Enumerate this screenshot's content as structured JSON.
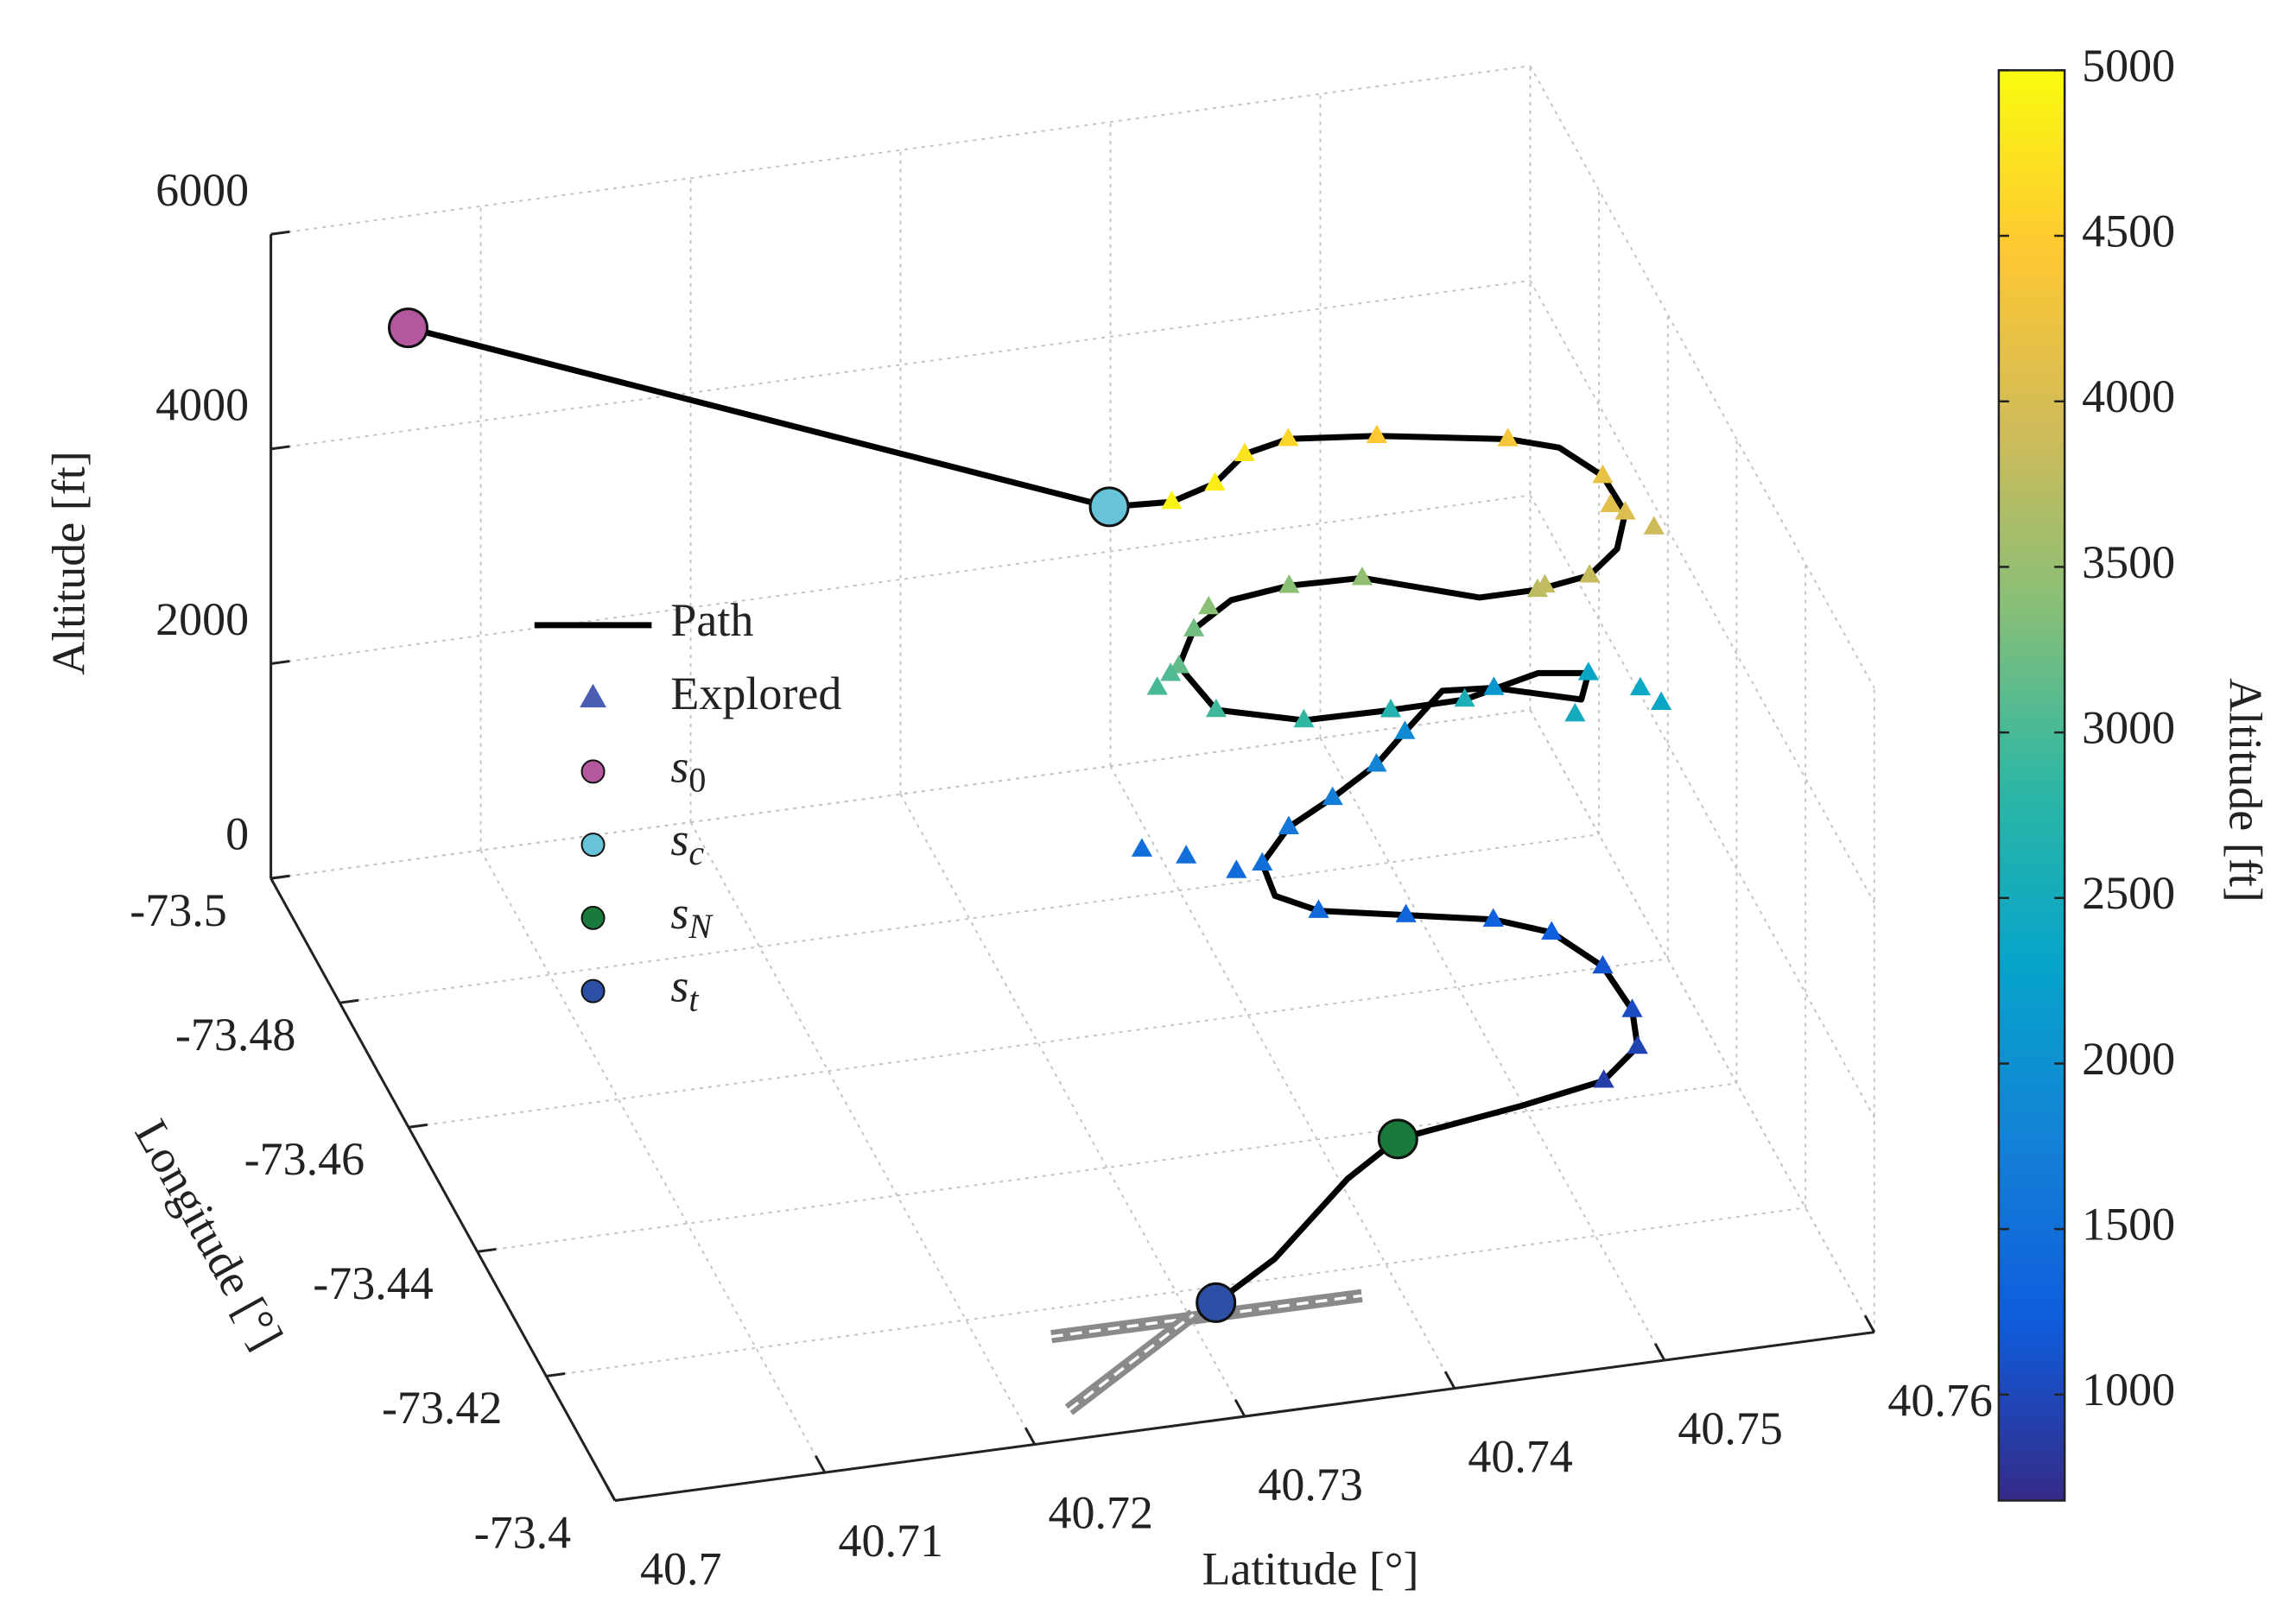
{
  "chart_data": {
    "type": "scatter3d",
    "xlabel": "Latitude [°]",
    "ylabel": "Longitude [°]",
    "zlabel": "Altitude [ft]",
    "xlim": [
      40.7,
      40.76
    ],
    "xticks": [
      40.7,
      40.71,
      40.72,
      40.73,
      40.74,
      40.75,
      40.76
    ],
    "ylim": [
      -73.5,
      -73.4
    ],
    "yticks": [
      -73.5,
      -73.48,
      -73.46,
      -73.44,
      -73.42,
      -73.4
    ],
    "zlim": [
      0,
      6000
    ],
    "zticks": [
      0,
      2000,
      4000,
      6000
    ],
    "grid": true,
    "colorbar": {
      "label": "Altitude [ft]",
      "colormap": "parula",
      "clim": [
        680,
        5000
      ],
      "ticks": [
        1000,
        1500,
        2000,
        2500,
        3000,
        3500,
        4000,
        4500,
        5000
      ]
    },
    "path": {
      "name": "Path",
      "color": "#000000",
      "x": [
        40.7059,
        40.7334,
        40.7363,
        40.7388,
        40.7411,
        40.7438,
        40.7482,
        40.7542,
        40.7564,
        40.7579,
        40.7584,
        40.7574,
        40.7558,
        40.7534,
        40.7509,
        40.7467,
        40.7434,
        40.7406,
        40.7385,
        40.7372,
        40.7383,
        40.7422,
        40.7467,
        40.7505,
        40.7548,
        40.7573,
        40.7566,
        40.7534,
        40.7513,
        40.7489,
        40.7471,
        40.7446,
        40.7422,
        40.7404,
        40.7403,
        40.742,
        40.7459,
        40.7498,
        40.7522,
        40.7539,
        40.7544,
        40.754,
        40.7518,
        40.7477,
        40.7415,
        40.7384,
        40.7333,
        40.7297
      ],
      "y": [
        -73.4961,
        -73.4601,
        -73.4596,
        -73.4623,
        -73.4677,
        -73.4715,
        -73.4726,
        -73.4711,
        -73.4696,
        -73.4661,
        -73.4626,
        -73.4589,
        -73.4571,
        -73.4576,
        -73.4592,
        -73.4677,
        -73.4688,
        -73.4686,
        -73.4666,
        -73.463,
        -73.4589,
        -73.4572,
        -73.4594,
        -73.4611,
        -73.466,
        -73.4666,
        -73.4644,
        -73.4703,
        -73.4725,
        -73.4687,
        -73.466,
        -73.4635,
        -73.4616,
        -73.4583,
        -73.454,
        -73.4517,
        -73.4501,
        -73.4485,
        -73.4462,
        -73.4417,
        -73.4362,
        -73.4322,
        -73.4286,
        -73.4273,
        -73.4256,
        -73.4213,
        -73.4114,
        -73.4065
      ],
      "z": [
        5200,
        4900,
        4900,
        4850,
        4750,
        4600,
        4450,
        4350,
        4300,
        4200,
        4050,
        3950,
        3850,
        3750,
        3650,
        3450,
        3400,
        3350,
        3250,
        3150,
        2950,
        2850,
        2700,
        2600,
        2450,
        2350,
        2250,
        2100,
        2000,
        1900,
        1800,
        1700,
        1600,
        1500,
        1450,
        1400,
        1350,
        1300,
        1250,
        1150,
        1050,
        950,
        900,
        850,
        800,
        760,
        720,
        690
      ]
    },
    "explored": {
      "name": "Explored",
      "color": "#4b5cb3",
      "x": [
        40.7363,
        40.7388,
        40.7411,
        40.7438,
        40.7482,
        40.7542,
        40.7579,
        40.7584,
        40.7558,
        40.7534,
        40.7467,
        40.7434,
        40.7385,
        40.7372,
        40.7383,
        40.7422,
        40.7467,
        40.7505,
        40.7573,
        40.7534,
        40.7489,
        40.7471,
        40.7446,
        40.7422,
        40.7404,
        40.742,
        40.7459,
        40.7498,
        40.7522,
        40.7539,
        40.7544,
        40.754,
        40.7518,
        40.7354,
        40.7372,
        40.7392,
        40.7361,
        40.7369,
        40.7393,
        40.7591,
        40.7598,
        40.7553,
        40.7597,
        40.7578,
        40.7537
      ],
      "y": [
        -73.4596,
        -73.4623,
        -73.4677,
        -73.4715,
        -73.4726,
        -73.4711,
        -73.4661,
        -73.4626,
        -73.4571,
        -73.4576,
        -73.4677,
        -73.4688,
        -73.4666,
        -73.463,
        -73.4589,
        -73.4572,
        -73.4594,
        -73.4611,
        -73.4666,
        -73.4703,
        -73.4687,
        -73.466,
        -73.4635,
        -73.4616,
        -73.4583,
        -73.4517,
        -73.4501,
        -73.4485,
        -73.4462,
        -73.4417,
        -73.4362,
        -73.4322,
        -73.4286,
        -73.4628,
        -73.4609,
        -73.4585,
        -73.4626,
        -73.4636,
        -73.4672,
        -73.4625,
        -73.4607,
        -73.4583,
        -73.4622,
        -73.4632,
        -73.4573
      ],
      "z": [
        4900,
        4850,
        4750,
        4600,
        4450,
        4350,
        4200,
        4050,
        3850,
        3750,
        3450,
        3400,
        3250,
        3150,
        2950,
        2850,
        2700,
        2600,
        2350,
        2100,
        1900,
        1800,
        1700,
        1600,
        1500,
        1400,
        1350,
        1300,
        1250,
        1150,
        1050,
        950,
        900,
        1500,
        1500,
        1450,
        3000,
        3050,
        3400,
        2400,
        2350,
        2500,
        3900,
        4100,
        3800
      ]
    },
    "markers": [
      {
        "symbol": "s",
        "subscript": "0",
        "color": "#b5579f",
        "x": 40.7059,
        "y": -73.4961,
        "z": 5200
      },
      {
        "symbol": "s",
        "subscript": "c",
        "color": "#66c3d8",
        "x": 40.7334,
        "y": -73.4601,
        "z": 4900
      },
      {
        "symbol": "s",
        "subscript": "N",
        "color": "#1a7a3c",
        "x": 40.7415,
        "y": -73.4256,
        "z": 800
      },
      {
        "symbol": "s",
        "subscript": "t",
        "color": "#2d4fa6",
        "x": 40.7297,
        "y": -73.4065,
        "z": 690
      }
    ]
  }
}
